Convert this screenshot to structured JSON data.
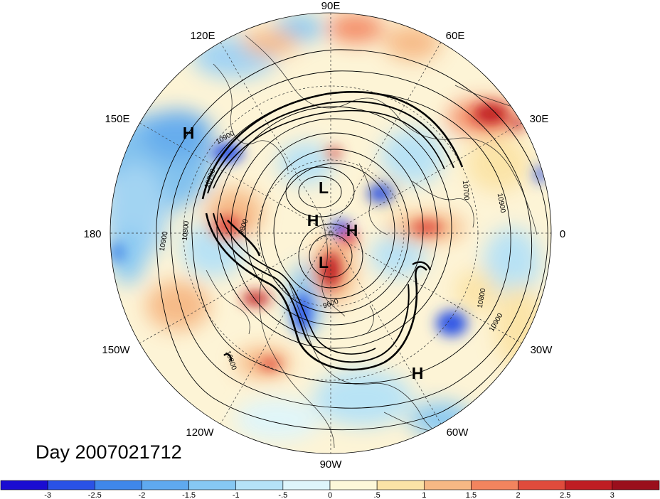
{
  "title": "Day 2007021712",
  "map": {
    "projection": "polar stereographic, north pole",
    "longitude_labels": [
      {
        "id": "lon-90e",
        "text": "90E"
      },
      {
        "id": "lon-120e",
        "text": "120E"
      },
      {
        "id": "lon-60e",
        "text": "60E"
      },
      {
        "id": "lon-150e",
        "text": "150E"
      },
      {
        "id": "lon-30e",
        "text": "30E"
      },
      {
        "id": "lon-180",
        "text": "180"
      },
      {
        "id": "lon-0",
        "text": "0"
      },
      {
        "id": "lon-150w",
        "text": "150W"
      },
      {
        "id": "lon-30w",
        "text": "30W"
      },
      {
        "id": "lon-120w",
        "text": "120W"
      },
      {
        "id": "lon-60w",
        "text": "60W"
      },
      {
        "id": "lon-90w",
        "text": "90W"
      }
    ],
    "pressure_centers": [
      {
        "id": "h-150e",
        "type": "H"
      },
      {
        "id": "l-arctic-n",
        "type": "L"
      },
      {
        "id": "h-arctic-w",
        "type": "H"
      },
      {
        "id": "h-arctic-e",
        "type": "H"
      },
      {
        "id": "l-arctic-s",
        "type": "L"
      },
      {
        "id": "h-atlantic",
        "type": "H"
      }
    ],
    "contour_labels": [
      {
        "id": "c10900-a",
        "text": "10900"
      },
      {
        "id": "c10700-a",
        "text": "10700"
      },
      {
        "id": "c10900-b",
        "text": "10900"
      },
      {
        "id": "c10800-a",
        "text": "10800"
      },
      {
        "id": "c9800",
        "text": "9800"
      },
      {
        "id": "c9600",
        "text": "9600"
      },
      {
        "id": "c10700-b",
        "text": "10700"
      },
      {
        "id": "c10900-c",
        "text": "10900"
      },
      {
        "id": "c10800-b",
        "text": "10800"
      },
      {
        "id": "c10900-d",
        "text": "10900"
      },
      {
        "id": "c10800-c",
        "text": "10800"
      }
    ],
    "contour_levels": [
      "9600",
      "9800",
      "10700",
      "10800",
      "10900"
    ]
  },
  "colorbar": {
    "tick_labels": [
      "-3",
      "-2.5",
      "-2",
      "-1.5",
      "-1",
      "-.5",
      "0",
      ".5",
      "1",
      "1.5",
      "2",
      "2.5",
      "3"
    ],
    "colors": [
      "#1a0cd2",
      "#2a52e6",
      "#3f87ea",
      "#5fa9ef",
      "#86c8f3",
      "#b5e2f7",
      "#def5fb",
      "#fdf8d9",
      "#fbe3a6",
      "#f6b884",
      "#f2845e",
      "#e04b3c",
      "#bf1d23",
      "#9a0f1c"
    ]
  }
}
